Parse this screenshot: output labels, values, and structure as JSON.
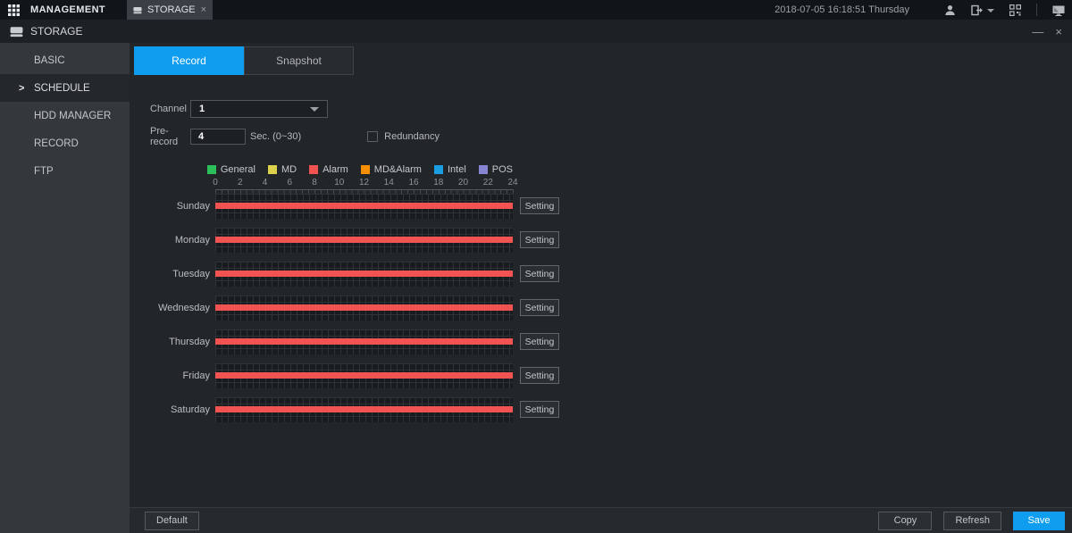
{
  "top_bar": {
    "management_label": "MANAGEMENT",
    "storage_tab_label": "STORAGE",
    "tab_close_glyph": "×",
    "datetime": "2018-07-05 16:18:51 Thursday"
  },
  "window": {
    "title": "STORAGE",
    "minimize_glyph": "—",
    "close_glyph": "×"
  },
  "sidebar": {
    "selected_arrow": ">",
    "items": [
      {
        "label": "BASIC",
        "selected": false
      },
      {
        "label": "SCHEDULE",
        "selected": true
      },
      {
        "label": "HDD MANAGER",
        "selected": false
      },
      {
        "label": "RECORD",
        "selected": false
      },
      {
        "label": "FTP",
        "selected": false
      }
    ]
  },
  "tabs": {
    "record": "Record",
    "snapshot": "Snapshot"
  },
  "form": {
    "channel_label": "Channel",
    "channel_value": "1",
    "prerecord_label": "Pre-record",
    "prerecord_value": "4",
    "prerecord_unit": "Sec. (0~30)",
    "redundancy_label": "Redundancy",
    "redundancy_checked": false
  },
  "legend": {
    "items": [
      {
        "label": "General",
        "color": "#2bc059"
      },
      {
        "label": "MD",
        "color": "#ddd04c"
      },
      {
        "label": "Alarm",
        "color": "#f15353"
      },
      {
        "label": "MD&Alarm",
        "color": "#f78f00"
      },
      {
        "label": "Intel",
        "color": "#1b9de2"
      },
      {
        "label": "POS",
        "color": "#8585d2"
      }
    ]
  },
  "schedule": {
    "hours": [
      "0",
      "2",
      "4",
      "6",
      "8",
      "10",
      "12",
      "14",
      "16",
      "18",
      "20",
      "22",
      "24"
    ],
    "hours_range": [
      0,
      24
    ],
    "bar_color": "#f15353",
    "setting_label": "Setting",
    "days": [
      {
        "label": "Sunday",
        "bar": {
          "start": 0,
          "end": 24,
          "type": "Alarm"
        }
      },
      {
        "label": "Monday",
        "bar": {
          "start": 0,
          "end": 24,
          "type": "Alarm"
        }
      },
      {
        "label": "Tuesday",
        "bar": {
          "start": 0,
          "end": 24,
          "type": "Alarm"
        }
      },
      {
        "label": "Wednesday",
        "bar": {
          "start": 0,
          "end": 24,
          "type": "Alarm"
        }
      },
      {
        "label": "Thursday",
        "bar": {
          "start": 0,
          "end": 24,
          "type": "Alarm"
        }
      },
      {
        "label": "Friday",
        "bar": {
          "start": 0,
          "end": 24,
          "type": "Alarm"
        }
      },
      {
        "label": "Saturday",
        "bar": {
          "start": 0,
          "end": 24,
          "type": "Alarm"
        }
      }
    ]
  },
  "footer": {
    "default_label": "Default",
    "copy_label": "Copy",
    "refresh_label": "Refresh",
    "save_label": "Save"
  },
  "colors": {
    "accent": "#0f9eef",
    "alarm_bar": "#f15353"
  }
}
